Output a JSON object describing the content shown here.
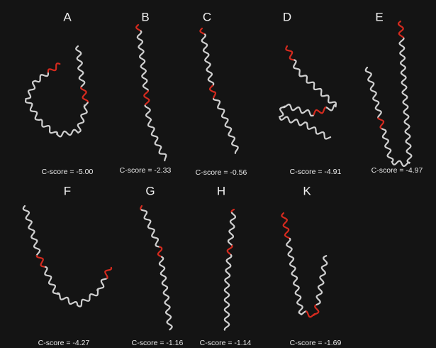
{
  "panels": [
    {
      "label": "A",
      "score": "C-score = -5.00"
    },
    {
      "label": "B",
      "score": "C-score = -2.33"
    },
    {
      "label": "C",
      "score": "C-score = -0.56"
    },
    {
      "label": "D",
      "score": "C-score = -4.91"
    },
    {
      "label": "E",
      "score": "C-score = -4.97"
    },
    {
      "label": "F",
      "score": "C-score = -4.27"
    },
    {
      "label": "G",
      "score": "C-score = -1.16"
    },
    {
      "label": "H",
      "score": "C-score = -1.14"
    },
    {
      "label": "K",
      "score": "C-score = -1.69"
    }
  ]
}
